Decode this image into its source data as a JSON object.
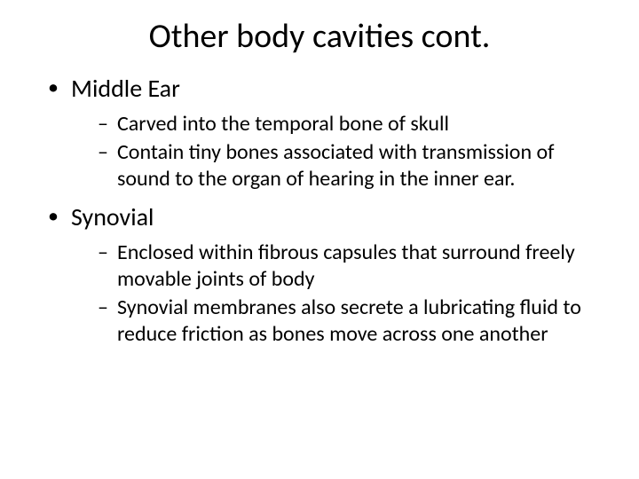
{
  "slide": {
    "background_color": "#ffffff",
    "text_color": "#000000",
    "font_family": "Calibri",
    "title": {
      "text": "Other body cavities cont.",
      "fontsize": 38,
      "align": "center"
    },
    "bullets": [
      {
        "label": "Middle Ear",
        "fontsize": 28,
        "sub": [
          {
            "text": "Carved into the temporal bone of skull",
            "fontsize": 24
          },
          {
            "text": "Contain tiny bones associated with transmission of sound to the organ of hearing in the inner ear.",
            "fontsize": 24
          }
        ]
      },
      {
        "label": "Synovial",
        "fontsize": 28,
        "sub": [
          {
            "text": "Enclosed within fibrous capsules that surround freely movable joints of body",
            "fontsize": 24
          },
          {
            "text": "Synovial membranes also secrete a lubricating fluid to reduce friction as bones move across one another",
            "fontsize": 24
          }
        ]
      }
    ]
  }
}
